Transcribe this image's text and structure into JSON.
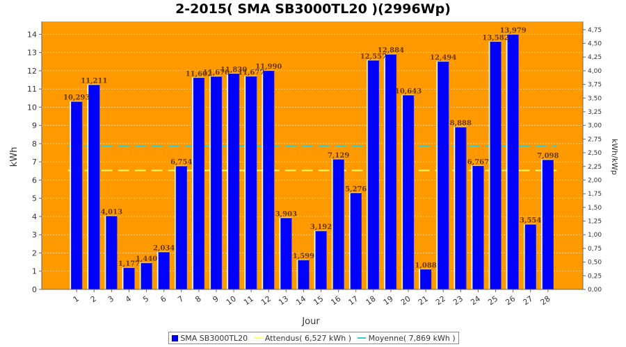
{
  "chart_data": {
    "type": "bar",
    "title": "2-2015( SMA SB3000TL20 )(2996Wp)",
    "xlabel": "Jour",
    "ylabel": "kWh",
    "y2label": "kWh/kWp",
    "ylim": [
      0,
      14.7
    ],
    "y2lim": [
      0,
      4.9
    ],
    "yticks": [
      0,
      1,
      2,
      3,
      4,
      5,
      6,
      7,
      8,
      9,
      10,
      11,
      12,
      13,
      14
    ],
    "y2ticks": [
      "0,00",
      "0,25",
      "0,50",
      "0,75",
      "1,00",
      "1,25",
      "1,50",
      "1,75",
      "2,00",
      "2,25",
      "2,50",
      "2,75",
      "3,00",
      "3,25",
      "3,50",
      "3,75",
      "4,00",
      "4,25",
      "4,50",
      "4,75"
    ],
    "y2tick_values": [
      0,
      0.25,
      0.5,
      0.75,
      1,
      1.25,
      1.5,
      1.75,
      2,
      2.25,
      2.5,
      2.75,
      3,
      3.25,
      3.5,
      3.75,
      4,
      4.25,
      4.5,
      4.75
    ],
    "categories": [
      "1",
      "2",
      "3",
      "4",
      "5",
      "6",
      "7",
      "8",
      "9",
      "10",
      "11",
      "12",
      "13",
      "14",
      "15",
      "16",
      "17",
      "18",
      "19",
      "20",
      "21",
      "22",
      "23",
      "24",
      "25",
      "26",
      "27",
      "28"
    ],
    "series": [
      {
        "name": "SMA SB3000TL20",
        "color": "#0000ff",
        "values": [
          10.293,
          11.211,
          4.013,
          1.177,
          1.44,
          2.034,
          6.754,
          11.602,
          11.67,
          11.83,
          11.677,
          11.99,
          3.903,
          1.599,
          3.192,
          7.129,
          5.276,
          12.557,
          12.884,
          10.643,
          1.088,
          12.494,
          8.888,
          6.767,
          13.582,
          13.979,
          3.554,
          7.098
        ],
        "labels": [
          "10,293",
          "11,211",
          "4,013",
          "1,177",
          "1,440",
          "2,034",
          "6,754",
          "11,602",
          "11,670",
          "11,830",
          "11,677",
          "11,990",
          "3,903",
          "1,599",
          "3,192",
          "7,129",
          "5,276",
          "12,557",
          "12,884",
          "10,643",
          "1,088",
          "12,494",
          "8,888",
          "6,767",
          "13,582",
          "13,979",
          "3,554",
          "7,098"
        ]
      }
    ],
    "reference_lines": [
      {
        "name": "Attendus( 6,527 kWh )",
        "value": 6.527,
        "color": "#ffff66",
        "dashed": true
      },
      {
        "name": "Moyenne( 7,869 kWh )",
        "value": 7.869,
        "color": "#33cccc",
        "dashed": true
      }
    ],
    "background_color": "#ff9900",
    "grid": true,
    "legend_position": "bottom"
  }
}
